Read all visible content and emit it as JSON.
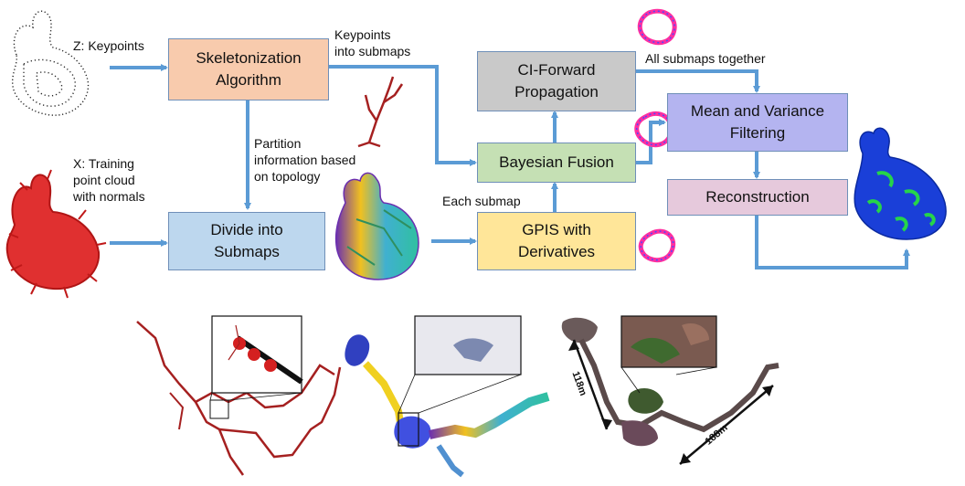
{
  "boxes": {
    "skeleton": "Skeletonization\nAlgorithm",
    "divide": "Divide into\nSubmaps",
    "ci_forward": "CI-Forward\nPropagation",
    "bayesian": "Bayesian Fusion",
    "gpis": "GPIS with\nDerivatives",
    "mean_var": "Mean and Variance\nFiltering",
    "reconstruction": "Reconstruction"
  },
  "labels": {
    "keypoints_input": "Z: Keypoints",
    "training_input": "X: Training\npoint cloud\nwith normals",
    "keypoints_into_submaps": "Keypoints\ninto submaps",
    "partition_info": "Partition\ninformation based\non topology",
    "each_submap": "Each submap",
    "all_submaps": "All submaps together"
  },
  "dimensions": {
    "left": "118m",
    "right": "188m"
  },
  "colors": {
    "arrow": "#5b9bd5",
    "skeleton_fill": "#f8cbad",
    "divide_fill": "#bdd7ee",
    "ci_forward_fill": "#c9c9c9",
    "bayesian_fill": "#c5e0b4",
    "gpis_fill": "#ffe699",
    "mean_var_fill": "#b4b4f0",
    "reconstruction_fill": "#e6c9dc",
    "bunny_red": "#d42020",
    "branch_red": "#a52020"
  }
}
